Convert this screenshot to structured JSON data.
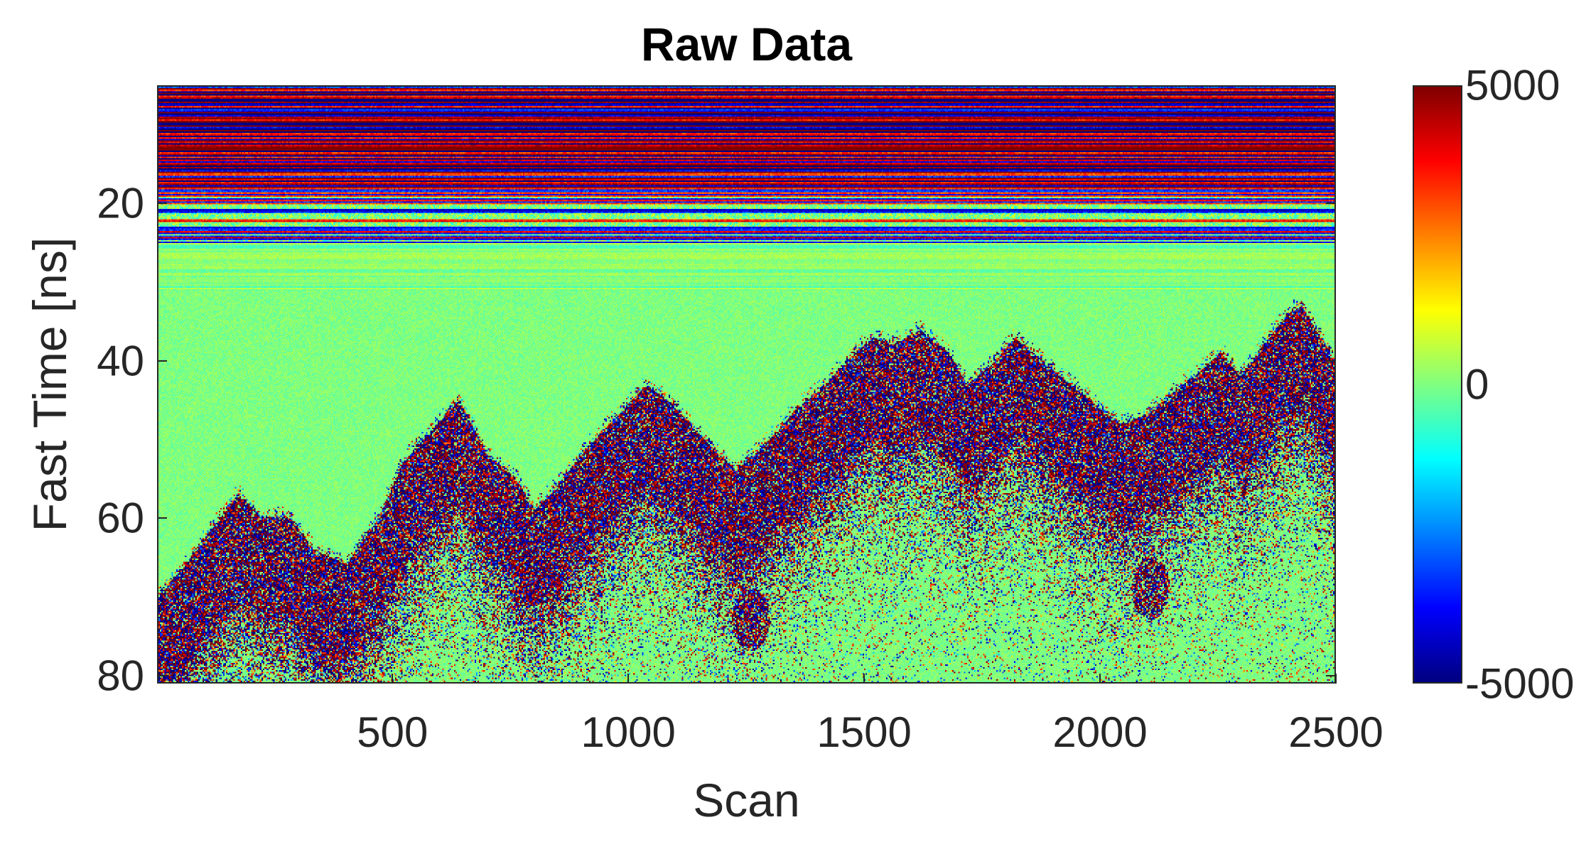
{
  "chart_data": {
    "type": "heatmap",
    "title": "Raw Data",
    "xlabel": "Scan",
    "ylabel": "Fast Time [ns]",
    "xlim": [
      1,
      2500
    ],
    "ylim": [
      5,
      81
    ],
    "y_reversed": true,
    "xticks": [
      500,
      1000,
      1500,
      2000,
      2500
    ],
    "yticks": [
      20,
      40,
      60,
      80
    ],
    "colormap": "jet",
    "clim": [
      -5000,
      5000
    ],
    "colorbar": {
      "ticks": [
        5000,
        0,
        -5000
      ],
      "location": "right"
    },
    "grid": false,
    "features": {
      "strong_banding_ns": [
        5,
        25
      ],
      "weak_banding_ns": [
        25,
        31
      ],
      "reflection_surface": {
        "scan": [
          1,
          60,
          120,
          170,
          220,
          280,
          330,
          400,
          470,
          520,
          580,
          640,
          700,
          760,
          800,
          850,
          900,
          960,
          1040,
          1100,
          1160,
          1230,
          1300,
          1360,
          1420,
          1480,
          1520,
          1560,
          1620,
          1680,
          1720,
          1780,
          1820,
          1860,
          1920,
          1980,
          2040,
          2100,
          2160,
          2220,
          2260,
          2300,
          2350,
          2400,
          2430,
          2470,
          2500
        ],
        "time_ns": [
          70,
          66,
          61,
          57,
          60,
          60,
          64,
          66,
          60,
          53,
          49,
          45,
          52,
          55,
          59,
          56,
          52,
          48,
          43,
          46,
          50,
          54,
          50,
          46,
          43,
          39,
          37,
          38,
          36,
          39,
          43,
          40,
          37,
          39,
          42,
          45,
          48,
          47,
          44,
          41,
          39,
          42,
          38,
          34,
          33,
          37,
          40
        ]
      },
      "isolated_diffraction": [
        {
          "scan": 1260,
          "time_ns": 73
        },
        {
          "scan": 2110,
          "time_ns": 69
        }
      ]
    }
  }
}
